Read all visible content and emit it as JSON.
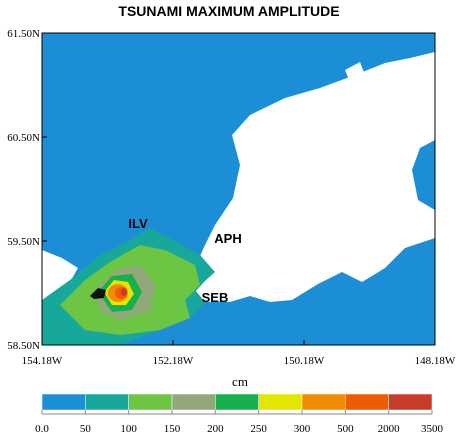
{
  "title": "TSUNAMI MAXIMUM AMPLITUDE",
  "map": {
    "xticks": [
      {
        "value": -154.18,
        "label": "154.18W"
      },
      {
        "value": -152.18,
        "label": "152.18W"
      },
      {
        "value": -150.18,
        "label": "150.18W"
      },
      {
        "value": -148.18,
        "label": "148.18W"
      }
    ],
    "yticks": [
      {
        "value": 58.5,
        "label": "58.50N"
      },
      {
        "value": 59.5,
        "label": "59.50N"
      },
      {
        "value": 60.5,
        "label": "60.50N"
      },
      {
        "value": 61.5,
        "label": "61.50N"
      }
    ],
    "places": [
      "ILV",
      "APH",
      "SEB"
    ]
  },
  "colorbar": {
    "label": "cm",
    "bins": [
      {
        "value": 0,
        "label": "0.0"
      },
      50,
      100,
      150,
      200,
      250,
      300,
      500,
      2000,
      3500
    ],
    "colors": [
      "#1c8ed6",
      "#17a89b",
      "#6cc644",
      "#93a87a",
      "#16b04c",
      "#e4e600",
      "#f08c00",
      "#f05a00",
      "#c83c28"
    ]
  }
}
